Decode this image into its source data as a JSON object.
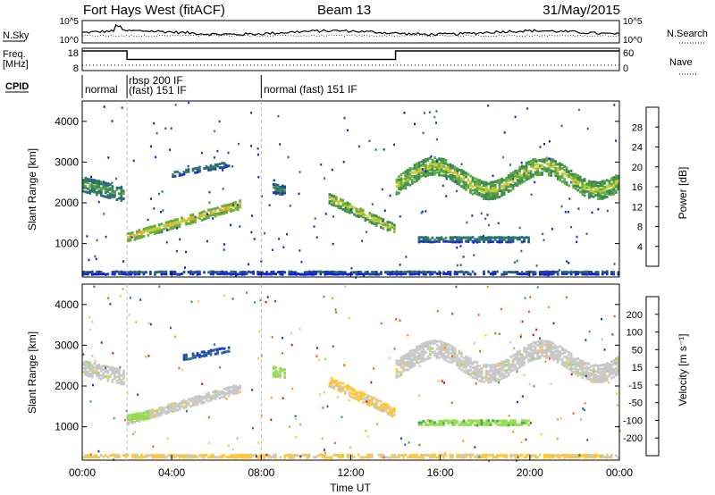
{
  "header": {
    "station": "Fort Hays West (fitACF)",
    "beam": "Beam 13",
    "date": "31/May/2015"
  },
  "noise_panel": {
    "left_label": "N.Sky",
    "right_label": "N.Search",
    "ticks_left": [
      "10^5",
      "10^0"
    ],
    "ticks_right": [
      "10^5",
      "10^0"
    ]
  },
  "freq_panel": {
    "left_label_1": "Freq.",
    "left_label_2": "[MHz]",
    "right_label": "Nave",
    "ticks_left": [
      "18",
      "8"
    ],
    "ticks_right": [
      "60",
      "0"
    ],
    "freq_steps": [
      {
        "t": 0,
        "value": 18
      },
      {
        "t": 2,
        "value": 18
      },
      {
        "t": 2,
        "value": 13
      },
      {
        "t": 14,
        "value": 13
      },
      {
        "t": 14,
        "value": 18
      },
      {
        "t": 24,
        "value": 18
      }
    ]
  },
  "cpid_panel": {
    "label": "CPID",
    "segments": [
      {
        "start": 0,
        "end": 2,
        "text": "normal"
      },
      {
        "start": 2,
        "end": 8,
        "text_1": "rbsp 200 IF",
        "text_2": "(fast) 151 IF"
      },
      {
        "start": 8,
        "end": 24,
        "text": "normal (fast) 151 IF"
      }
    ]
  },
  "xaxis": {
    "label": "Time UT",
    "ticks": [
      {
        "t": 0,
        "label": "00:00"
      },
      {
        "t": 4,
        "label": "04:00"
      },
      {
        "t": 8,
        "label": "08:00"
      },
      {
        "t": 12,
        "label": "12:00"
      },
      {
        "t": 16,
        "label": "16:00"
      },
      {
        "t": 20,
        "label": "20:00"
      },
      {
        "t": 24,
        "label": "00:00"
      }
    ]
  },
  "power_colorbar": {
    "title": "Power [dB]",
    "ticks": [
      "28",
      "24",
      "20",
      "16",
      "12",
      "8",
      "4"
    ],
    "colors": [
      "#0a1ee0",
      "#1e3caa",
      "#286e6e",
      "#3c8c50",
      "#64aa3c",
      "#c8c832",
      "#f0a028",
      "#f06414",
      "#e61e1e"
    ]
  },
  "velocity_colorbar": {
    "title": "Velocity [m s⁻¹]",
    "ticks": [
      "200",
      "100",
      "50",
      "15",
      "-15",
      "-50",
      "-100",
      "-200"
    ],
    "colors": [
      "#1e3cc8",
      "#287878",
      "#3caa3c",
      "#96dc50",
      "#c8c8c8",
      "#ffc832",
      "#ff961e",
      "#ff5a14",
      "#e61414"
    ]
  },
  "chart_data": [
    {
      "type": "heatmap",
      "title": "Power",
      "ylabel": "Slant Range [km]",
      "xlabel": "Time UT",
      "xlim": [
        0,
        24
      ],
      "ylim": [
        180,
        4500
      ],
      "yticks": [
        "1000",
        "2000",
        "3000",
        "4000"
      ],
      "colorbar_label": "Power [dB]",
      "features": [
        {
          "t0": 0.0,
          "t1": 1.9,
          "r0": 2450,
          "r1": 2200,
          "width": 380,
          "value": 10
        },
        {
          "t0": 2.0,
          "t1": 7.0,
          "r0": 1150,
          "r1": 1950,
          "width": 230,
          "value": 16
        },
        {
          "t0": 4.0,
          "t1": 6.5,
          "r0": 2700,
          "r1": 2950,
          "width": 150,
          "value": 6
        },
        {
          "t0": 8.5,
          "t1": 9.0,
          "r0": 2350,
          "r1": 2300,
          "width": 250,
          "value": 8
        },
        {
          "t0": 11.0,
          "t1": 13.9,
          "r0": 2100,
          "r1": 1350,
          "width": 260,
          "value": 14
        },
        {
          "t0": 14.0,
          "t1": 24.0,
          "r0": 2600,
          "r1": 2600,
          "width": 450,
          "value": 14
        },
        {
          "t0": 15.0,
          "t1": 20.0,
          "r0": 1100,
          "r1": 1100,
          "width": 150,
          "value": 6
        },
        {
          "t0": 0.0,
          "t1": 24.0,
          "r0": 280,
          "r1": 280,
          "width": 100,
          "value": 4
        }
      ]
    },
    {
      "type": "heatmap",
      "title": "Velocity",
      "ylabel": "Slant Range [km]",
      "xlabel": "Time UT",
      "xlim": [
        0,
        24
      ],
      "ylim": [
        180,
        4500
      ],
      "yticks": [
        "1000",
        "2000",
        "3000",
        "4000"
      ],
      "colorbar_label": "Velocity [m s⁻¹]",
      "features": [
        {
          "t0": 0.0,
          "t1": 1.9,
          "r0": 2450,
          "r1": 2200,
          "width": 380,
          "value": 0
        },
        {
          "t0": 2.0,
          "t1": 7.0,
          "r0": 1150,
          "r1": 1950,
          "width": 230,
          "value": 0
        },
        {
          "t0": 2.0,
          "t1": 3.0,
          "r0": 1200,
          "r1": 1300,
          "width": 200,
          "value": -60
        },
        {
          "t0": 4.5,
          "t1": 6.5,
          "r0": 2700,
          "r1": 2900,
          "width": 150,
          "value": -200
        },
        {
          "t0": 8.5,
          "t1": 9.0,
          "r0": 2350,
          "r1": 2300,
          "width": 250,
          "value": -50
        },
        {
          "t0": 11.0,
          "t1": 13.9,
          "r0": 2100,
          "r1": 1350,
          "width": 260,
          "value": 40
        },
        {
          "t0": 14.0,
          "t1": 24.0,
          "r0": 2600,
          "r1": 2600,
          "width": 450,
          "value": 0
        },
        {
          "t0": 15.0,
          "t1": 20.0,
          "r0": 1100,
          "r1": 1100,
          "width": 150,
          "value": -60
        },
        {
          "t0": 0.0,
          "t1": 24.0,
          "r0": 280,
          "r1": 280,
          "width": 100,
          "value": 40
        }
      ]
    }
  ]
}
